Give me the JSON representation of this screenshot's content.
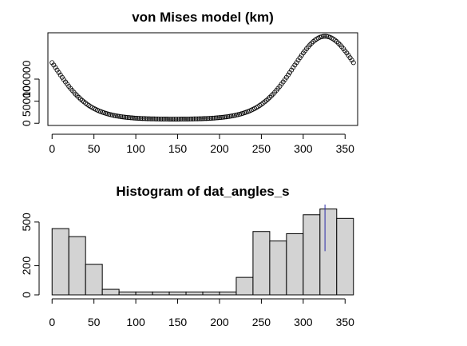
{
  "chart_data": [
    {
      "type": "scatter",
      "title": "von Mises model (km)",
      "xlabel": "",
      "ylabel": "",
      "xlim": [
        -5,
        365
      ],
      "ylim": [
        -5000,
        205000
      ],
      "x_ticks": [
        0,
        50,
        100,
        150,
        200,
        250,
        300,
        350
      ],
      "y_ticks": [
        0,
        50000,
        100000
      ],
      "grid": false,
      "curve": {
        "x_step": 2,
        "x_range": [
          0,
          360
        ],
        "min_value": 7000,
        "amplitude": 190000,
        "mu_degrees": 326,
        "kappa": 2.2
      }
    },
    {
      "type": "bar",
      "title": "Histogram of dat_angles_s",
      "xlabel": "",
      "ylabel": "",
      "xlim": [
        -5,
        365
      ],
      "ylim": [
        0,
        620
      ],
      "x_ticks": [
        0,
        50,
        100,
        150,
        200,
        250,
        300,
        350
      ],
      "y_ticks": [
        0,
        200,
        500
      ],
      "bin_width": 20,
      "bin_starts": [
        0,
        20,
        40,
        60,
        80,
        100,
        120,
        140,
        160,
        180,
        200,
        220,
        240,
        260,
        280,
        300,
        320,
        340
      ],
      "values": [
        455,
        400,
        210,
        38,
        20,
        20,
        20,
        20,
        20,
        20,
        20,
        120,
        435,
        370,
        420,
        550,
        590,
        525
      ],
      "vline": {
        "x": 326,
        "y_from": 300,
        "y_to": 620
      },
      "grid": false
    }
  ]
}
